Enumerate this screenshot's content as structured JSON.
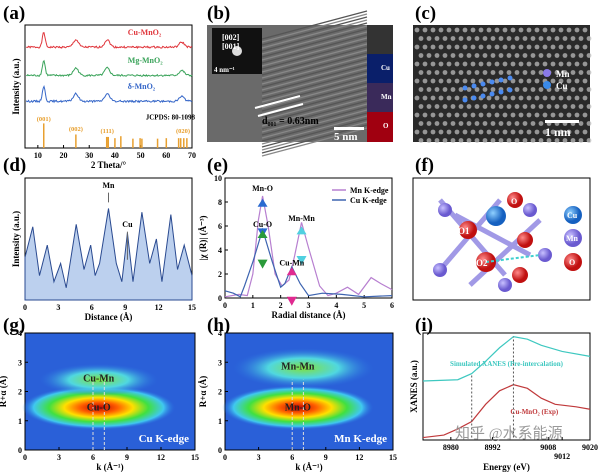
{
  "panels": {
    "a": "(a)",
    "b": "(b)",
    "c": "(c)",
    "d": "(d)",
    "e": "(e)",
    "f": "(f)",
    "g": "(g)",
    "h": "(h)",
    "i": "(i)"
  },
  "micrograph_b": {
    "inset_top": "[002]",
    "inset_bottom": "[001]",
    "inset_scale": "4 nm⁻¹",
    "d_spacing": "d₀₀₁ = 0.63nm",
    "scale": "5 nm",
    "map_labels": [
      "Cu",
      "Mn",
      "O"
    ]
  },
  "micrograph_c": {
    "legend": [
      "Mn",
      "Cu"
    ],
    "scale": "1 nm"
  },
  "structure_f": {
    "atom_labels": [
      "O1",
      "O2",
      "O"
    ],
    "legend": [
      "Cu",
      "Mn",
      "O"
    ]
  },
  "watermark": "知乎 @水系能源",
  "colors": {
    "cu": "#e0363c",
    "mg": "#3aa35a",
    "delta": "#3566c8",
    "jcpds": "#e8a030",
    "mn_k": "#b77fd0",
    "cu_k": "#3d64b0",
    "sim": "#3ec8c0",
    "exp": "#c0393b"
  },
  "chart_data": [
    {
      "type": "line",
      "id": "a",
      "xlabel": "2 Theta/°",
      "ylabel": "Intensity (a.u.)",
      "xlim": [
        5,
        70
      ],
      "xticks": [
        10,
        20,
        30,
        40,
        50,
        60,
        70
      ],
      "series": [
        {
          "name": "Cu-MnO₂",
          "peaks": [
            12.3,
            24.8,
            37,
            66
          ]
        },
        {
          "name": "Mg-MnO₂",
          "peaks": [
            12.3,
            24.8,
            37,
            66
          ]
        },
        {
          "name": "δ-MnO₂",
          "peaks": [
            12.3,
            24.8,
            37,
            66
          ]
        }
      ],
      "reference": {
        "name": "JCPDS: 80-1098",
        "sticks": [
          [
            12.3,
            1
          ],
          [
            24.8,
            0.55
          ],
          [
            36.8,
            0.45
          ],
          [
            37.4,
            0.45
          ],
          [
            40,
            0.4
          ],
          [
            42.3,
            0.48
          ],
          [
            47,
            0.38
          ],
          [
            49.8,
            0.4
          ],
          [
            50.5,
            0.38
          ],
          [
            56.6,
            0.38
          ],
          [
            60,
            0.4
          ],
          [
            64.8,
            0.4
          ],
          [
            65.6,
            0.4
          ],
          [
            66.8,
            0.4
          ],
          [
            68,
            0.4
          ]
        ],
        "hkl": [
          "(001)",
          "(002)",
          "(111)",
          "(020)"
        ]
      }
    },
    {
      "type": "area",
      "id": "d",
      "xlabel": "Distance (Å)",
      "ylabel": "Intensity (a.u.)",
      "xlim": [
        0,
        15
      ],
      "xticks": [
        0,
        3,
        6,
        9,
        12,
        15
      ],
      "annotations": [
        "Mn",
        "Cu"
      ],
      "points": [
        [
          0,
          0.35
        ],
        [
          0.7,
          0.6
        ],
        [
          1.3,
          0.2
        ],
        [
          2.0,
          0.45
        ],
        [
          2.6,
          0.15
        ],
        [
          3.2,
          0.3
        ],
        [
          3.7,
          0.1
        ],
        [
          4.6,
          0.62
        ],
        [
          5.3,
          0.25
        ],
        [
          5.9,
          0.45
        ],
        [
          6.3,
          0.2
        ],
        [
          6.7,
          0.3
        ],
        [
          7.5,
          0.75
        ],
        [
          8.2,
          0.3
        ],
        [
          8.7,
          0.15
        ],
        [
          9.2,
          0.55
        ],
        [
          9.7,
          0.15
        ],
        [
          10.5,
          0.72
        ],
        [
          11.2,
          0.3
        ],
        [
          11.8,
          0.5
        ],
        [
          12.3,
          0.15
        ],
        [
          13.1,
          0.7
        ],
        [
          13.7,
          0.25
        ],
        [
          14.3,
          0.45
        ],
        [
          15,
          0.2
        ]
      ]
    },
    {
      "type": "line",
      "id": "e",
      "xlabel": "Radial distance (Å)",
      "ylabel": "|χ (R)| (Å⁻³)",
      "xlim": [
        0,
        6
      ],
      "ylim": [
        0,
        10
      ],
      "xticks": [
        0,
        1,
        2,
        3,
        4,
        5,
        6
      ],
      "yticks": [
        0,
        2,
        4,
        6,
        8,
        10
      ],
      "legend": "top-right",
      "annotations": [
        "Mn-O",
        "Cu-O",
        "Mn-Mn",
        "Cu-Mn"
      ],
      "series": [
        {
          "name": "Mn K-edge",
          "points": [
            [
              0,
              0.1
            ],
            [
              0.5,
              0.3
            ],
            [
              0.8,
              0.2
            ],
            [
              1.0,
              2
            ],
            [
              1.2,
              6.5
            ],
            [
              1.35,
              8.5
            ],
            [
              1.55,
              6
            ],
            [
              1.8,
              2
            ],
            [
              2.05,
              1
            ],
            [
              2.3,
              1.5
            ],
            [
              2.5,
              3.5
            ],
            [
              2.75,
              6.3
            ],
            [
              3.0,
              4.2
            ],
            [
              3.4,
              1
            ],
            [
              3.7,
              0.2
            ],
            [
              4.0,
              0.4
            ],
            [
              4.4,
              0.9
            ],
            [
              4.8,
              0.3
            ],
            [
              5.25,
              1.7
            ],
            [
              5.6,
              1.2
            ],
            [
              6,
              0.7
            ]
          ]
        },
        {
          "name": "Cu K-edge",
          "points": [
            [
              0,
              0.6
            ],
            [
              0.3,
              0.4
            ],
            [
              0.55,
              0.1
            ],
            [
              0.7,
              1
            ],
            [
              1.0,
              3
            ],
            [
              1.35,
              5.7
            ],
            [
              1.7,
              3
            ],
            [
              2.0,
              0.9
            ],
            [
              2.15,
              1.2
            ],
            [
              2.4,
              2.6
            ],
            [
              2.7,
              1.2
            ],
            [
              3.0,
              0.2
            ],
            [
              3.5,
              0.4
            ],
            [
              4.2,
              0.3
            ],
            [
              5,
              0.1
            ],
            [
              6,
              0.2
            ]
          ]
        }
      ]
    },
    {
      "type": "heatmap",
      "id": "g",
      "xlabel": "k (Å⁻¹)",
      "ylabel": "R+α (Å)",
      "xlim": [
        0,
        15
      ],
      "ylim": [
        0,
        4
      ],
      "xticks": [
        0,
        3,
        6,
        9,
        12,
        15
      ],
      "yticks": [
        0,
        1,
        2,
        3,
        4
      ],
      "annotations": [
        "Cu-Mn",
        "Cu-O"
      ],
      "edge": "Cu K-edge"
    },
    {
      "type": "heatmap",
      "id": "h",
      "xlabel": "k (Å⁻¹)",
      "ylabel": "R+α (Å)",
      "xlim": [
        0,
        15
      ],
      "ylim": [
        0,
        4
      ],
      "xticks": [
        0,
        3,
        6,
        9,
        12,
        15
      ],
      "yticks": [
        0,
        1,
        2,
        3,
        4
      ],
      "annotations": [
        "Mn-Mn",
        "Mn-O"
      ],
      "edge": "Mn K-edge"
    },
    {
      "type": "line",
      "id": "i",
      "xlabel": "Energy (eV)",
      "ylabel": "XANES (a.u.)",
      "xlim": [
        8972,
        9020
      ],
      "xticks": [
        8980,
        8992,
        9008,
        9012,
        9020
      ],
      "series": [
        {
          "name": "Simulated XANES (Pre-intercalation)",
          "points": [
            [
              8972,
              0.46
            ],
            [
              8982,
              0.47
            ],
            [
              8986,
              0.52
            ],
            [
              8990,
              0.62
            ],
            [
              8994,
              0.73
            ],
            [
              8998,
              0.82
            ],
            [
              9002,
              0.8
            ],
            [
              9006,
              0.75
            ],
            [
              9012,
              0.7
            ],
            [
              9020,
              0.66
            ]
          ]
        },
        {
          "name": "Cu-MnO₂ (Exp)",
          "points": [
            [
              8972,
              0
            ],
            [
              8978,
              0.02
            ],
            [
              8982,
              0.07
            ],
            [
              8986,
              0.13
            ],
            [
              8990,
              0.27
            ],
            [
              8994,
              0.38
            ],
            [
              8998,
              0.43
            ],
            [
              9002,
              0.4
            ],
            [
              9006,
              0.32
            ],
            [
              9010,
              0.27
            ],
            [
              9016,
              0.25
            ],
            [
              9020,
              0.23
            ]
          ]
        }
      ]
    }
  ]
}
